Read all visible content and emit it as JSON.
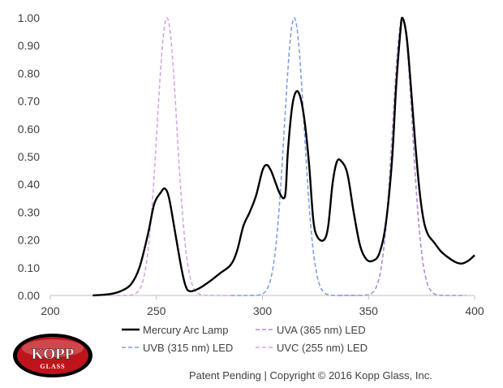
{
  "colors": {
    "axis": "#bfbfbf",
    "text": "#404040",
    "logo_red": "#c0141c"
  },
  "logo": {
    "main": "KOPP",
    "sub": "GLASS"
  },
  "copyright": "Patent Pending | Copyright © 2016 Kopp Glass, Inc.",
  "chart_data": {
    "type": "line",
    "title": "",
    "xlabel": "",
    "ylabel": "",
    "xlim": [
      200,
      400
    ],
    "ylim": [
      0,
      1
    ],
    "x_ticks": [
      200,
      250,
      300,
      350,
      400
    ],
    "y_ticks": [
      "0.00",
      "0.10",
      "0.20",
      "0.30",
      "0.40",
      "0.50",
      "0.60",
      "0.70",
      "0.80",
      "0.90",
      "1.00"
    ],
    "grid": false,
    "legend_position": "bottom",
    "series": [
      {
        "name": "Mercury Arc Lamp",
        "color": "#000000",
        "dash": "solid",
        "points": [
          [
            220,
            0
          ],
          [
            228,
            0.005
          ],
          [
            233,
            0.015
          ],
          [
            238,
            0.04
          ],
          [
            242,
            0.1
          ],
          [
            246,
            0.22
          ],
          [
            249,
            0.33
          ],
          [
            252,
            0.37
          ],
          [
            254,
            0.385
          ],
          [
            256,
            0.35
          ],
          [
            259,
            0.22
          ],
          [
            262,
            0.09
          ],
          [
            264,
            0.03
          ],
          [
            266,
            0.015
          ],
          [
            270,
            0.025
          ],
          [
            275,
            0.05
          ],
          [
            280,
            0.08
          ],
          [
            285,
            0.11
          ],
          [
            288,
            0.16
          ],
          [
            291,
            0.25
          ],
          [
            294,
            0.3
          ],
          [
            297,
            0.36
          ],
          [
            300,
            0.45
          ],
          [
            302,
            0.47
          ],
          [
            304,
            0.45
          ],
          [
            306,
            0.41
          ],
          [
            308,
            0.37
          ],
          [
            310,
            0.35
          ],
          [
            311,
            0.38
          ],
          [
            312,
            0.52
          ],
          [
            314,
            0.68
          ],
          [
            316,
            0.735
          ],
          [
            318,
            0.71
          ],
          [
            320,
            0.62
          ],
          [
            322,
            0.47
          ],
          [
            324,
            0.27
          ],
          [
            326,
            0.21
          ],
          [
            329,
            0.2
          ],
          [
            331,
            0.25
          ],
          [
            333,
            0.4
          ],
          [
            335,
            0.48
          ],
          [
            337,
            0.485
          ],
          [
            340,
            0.44
          ],
          [
            343,
            0.3
          ],
          [
            346,
            0.18
          ],
          [
            349,
            0.13
          ],
          [
            352,
            0.125
          ],
          [
            355,
            0.15
          ],
          [
            358,
            0.25
          ],
          [
            361,
            0.48
          ],
          [
            363,
            0.75
          ],
          [
            365,
            0.95
          ],
          [
            366,
            1.0
          ],
          [
            368,
            0.93
          ],
          [
            370,
            0.75
          ],
          [
            372,
            0.55
          ],
          [
            374,
            0.38
          ],
          [
            376,
            0.27
          ],
          [
            378,
            0.22
          ],
          [
            381,
            0.19
          ],
          [
            384,
            0.16
          ],
          [
            387,
            0.14
          ],
          [
            391,
            0.12
          ],
          [
            394,
            0.115
          ],
          [
            397,
            0.125
          ],
          [
            400,
            0.145
          ]
        ]
      },
      {
        "name": "UVA (365 nm) LED",
        "color": "#b28ad9",
        "dash": "dashed",
        "center": 366,
        "fwhm": 11
      },
      {
        "name": "UVB (315 nm) LED",
        "color": "#7f9fe3",
        "dash": "dashed",
        "center": 315,
        "fwhm": 11
      },
      {
        "name": "UVC (255 nm) LED",
        "color": "#d6a6e6",
        "dash": "dashed",
        "center": 255,
        "fwhm": 11
      }
    ]
  }
}
